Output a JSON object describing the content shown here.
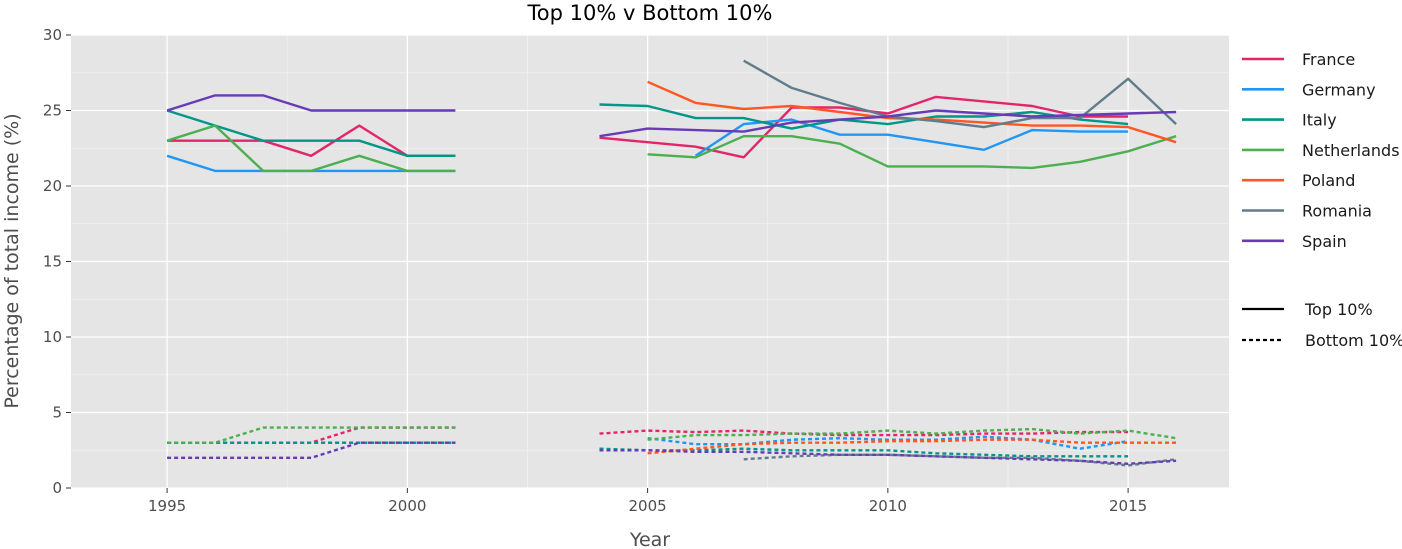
{
  "chart_data": {
    "type": "line",
    "title": "Top 10% v Bottom 10%",
    "xlabel": "Year",
    "ylabel": "Percentage of total income (%)",
    "xlim": [
      1993,
      2017.1
    ],
    "ylim": [
      0,
      30
    ],
    "x_ticks": [
      1995,
      2000,
      2005,
      2010,
      2015
    ],
    "y_ticks": [
      0,
      5,
      10,
      15,
      20,
      25,
      30
    ],
    "grid": true,
    "legend_position": "right",
    "line_style_legend": [
      {
        "label": "Top 10%",
        "dash": "solid"
      },
      {
        "label": "Bottom 10%",
        "dash": "dashed"
      }
    ],
    "series": [
      {
        "name": "France",
        "color": "#E3256B",
        "top10": [
          [
            1995,
            23
          ],
          [
            1996,
            23
          ],
          [
            1997,
            23
          ],
          [
            1998,
            22
          ],
          [
            1999,
            24
          ],
          [
            2000,
            22
          ],
          [
            2001,
            22
          ],
          [
            null,
            null
          ],
          [
            2004,
            23.2
          ],
          [
            2005,
            22.9
          ],
          [
            2006,
            22.6
          ],
          [
            2007,
            21.9
          ],
          [
            2008,
            25.2
          ],
          [
            2009,
            25.2
          ],
          [
            2010,
            24.8
          ],
          [
            2011,
            25.9
          ],
          [
            2012,
            25.6
          ],
          [
            2013,
            25.3
          ],
          [
            2014,
            24.6
          ],
          [
            2015,
            24.6
          ]
        ],
        "bottom10": [
          [
            1995,
            3
          ],
          [
            1996,
            3
          ],
          [
            1997,
            3
          ],
          [
            1998,
            3
          ],
          [
            1999,
            4
          ],
          [
            2000,
            4
          ],
          [
            2001,
            4
          ],
          [
            null,
            null
          ],
          [
            2004,
            3.6
          ],
          [
            2005,
            3.8
          ],
          [
            2006,
            3.7
          ],
          [
            2007,
            3.8
          ],
          [
            2008,
            3.6
          ],
          [
            2009,
            3.5
          ],
          [
            2010,
            3.5
          ],
          [
            2011,
            3.5
          ],
          [
            2012,
            3.6
          ],
          [
            2013,
            3.6
          ],
          [
            2014,
            3.7
          ],
          [
            2015,
            3.7
          ]
        ]
      },
      {
        "name": "Germany",
        "color": "#2196F3",
        "top10": [
          [
            1995,
            22
          ],
          [
            1996,
            21
          ],
          [
            1997,
            21
          ],
          [
            1998,
            21
          ],
          [
            1999,
            21
          ],
          [
            2000,
            21
          ],
          [
            2001,
            21
          ],
          [
            null,
            null
          ],
          [
            2006,
            22
          ],
          [
            2007,
            24.1
          ],
          [
            2008,
            24.4
          ],
          [
            2009,
            23.4
          ],
          [
            2010,
            23.4
          ],
          [
            2011,
            22.9
          ],
          [
            2012,
            22.4
          ],
          [
            2013,
            23.7
          ],
          [
            2014,
            23.6
          ],
          [
            2015,
            23.6
          ]
        ],
        "bottom10": [
          [
            1995,
            3
          ],
          [
            1996,
            3
          ],
          [
            1997,
            3
          ],
          [
            1998,
            3
          ],
          [
            1999,
            3
          ],
          [
            2000,
            3
          ],
          [
            2001,
            3
          ],
          [
            null,
            null
          ],
          [
            2005,
            3.3
          ],
          [
            2006,
            2.9
          ],
          [
            2007,
            2.9
          ],
          [
            2008,
            3.2
          ],
          [
            2009,
            3.3
          ],
          [
            2010,
            3.2
          ],
          [
            2011,
            3.2
          ],
          [
            2012,
            3.4
          ],
          [
            2013,
            3.2
          ],
          [
            2014,
            2.6
          ],
          [
            2015,
            3.1
          ]
        ]
      },
      {
        "name": "Italy",
        "color": "#009688",
        "top10": [
          [
            1995,
            25
          ],
          [
            1996,
            24
          ],
          [
            1997,
            23
          ],
          [
            1998,
            23
          ],
          [
            1999,
            23
          ],
          [
            2000,
            22
          ],
          [
            2001,
            22
          ],
          [
            null,
            null
          ],
          [
            2004,
            25.4
          ],
          [
            2005,
            25.3
          ],
          [
            2006,
            24.5
          ],
          [
            2007,
            24.5
          ],
          [
            2008,
            23.8
          ],
          [
            2009,
            24.4
          ],
          [
            2010,
            24.1
          ],
          [
            2011,
            24.6
          ],
          [
            2012,
            24.6
          ],
          [
            2013,
            24.9
          ],
          [
            2014,
            24.4
          ],
          [
            2015,
            24.1
          ]
        ],
        "bottom10": [
          [
            1995,
            3
          ],
          [
            1996,
            3
          ],
          [
            1997,
            3
          ],
          [
            1998,
            3
          ],
          [
            1999,
            3
          ],
          [
            2000,
            3
          ],
          [
            2001,
            3
          ],
          [
            null,
            null
          ],
          [
            2004,
            2.6
          ],
          [
            2005,
            2.5
          ],
          [
            2006,
            2.5
          ],
          [
            2007,
            2.6
          ],
          [
            2008,
            2.5
          ],
          [
            2009,
            2.5
          ],
          [
            2010,
            2.5
          ],
          [
            2011,
            2.3
          ],
          [
            2012,
            2.2
          ],
          [
            2013,
            2.1
          ],
          [
            2014,
            2.1
          ],
          [
            2015,
            2.1
          ]
        ]
      },
      {
        "name": "Netherlands",
        "color": "#4CAF50",
        "top10": [
          [
            1995,
            23
          ],
          [
            1996,
            24
          ],
          [
            1997,
            21
          ],
          [
            1998,
            21
          ],
          [
            1999,
            22
          ],
          [
            2000,
            21
          ],
          [
            2001,
            21
          ],
          [
            null,
            null
          ],
          [
            2005,
            22.1
          ],
          [
            2006,
            21.9
          ],
          [
            2007,
            23.3
          ],
          [
            2008,
            23.3
          ],
          [
            2009,
            22.8
          ],
          [
            2010,
            21.3
          ],
          [
            2011,
            21.3
          ],
          [
            2012,
            21.3
          ],
          [
            2013,
            21.2
          ],
          [
            2014,
            21.6
          ],
          [
            2015,
            22.3
          ],
          [
            2016,
            23.3
          ]
        ],
        "bottom10": [
          [
            1995,
            3
          ],
          [
            1996,
            3
          ],
          [
            1997,
            4
          ],
          [
            1998,
            4
          ],
          [
            1999,
            4
          ],
          [
            2000,
            4
          ],
          [
            2001,
            4
          ],
          [
            null,
            null
          ],
          [
            2005,
            3.2
          ],
          [
            2006,
            3.5
          ],
          [
            2007,
            3.5
          ],
          [
            2008,
            3.6
          ],
          [
            2009,
            3.6
          ],
          [
            2010,
            3.8
          ],
          [
            2011,
            3.6
          ],
          [
            2012,
            3.8
          ],
          [
            2013,
            3.9
          ],
          [
            2014,
            3.6
          ],
          [
            2015,
            3.8
          ],
          [
            2016,
            3.3
          ]
        ]
      },
      {
        "name": "Poland",
        "color": "#FF5722",
        "top10": [
          [
            2005,
            26.9
          ],
          [
            2006,
            25.5
          ],
          [
            2007,
            25.1
          ],
          [
            2008,
            25.3
          ],
          [
            2009,
            24.9
          ],
          [
            2010,
            24.5
          ],
          [
            2011,
            24.4
          ],
          [
            2012,
            24.2
          ],
          [
            2013,
            24.0
          ],
          [
            2014,
            24.0
          ],
          [
            2015,
            23.9
          ],
          [
            2016,
            22.9
          ]
        ],
        "bottom10": [
          [
            2005,
            2.3
          ],
          [
            2006,
            2.6
          ],
          [
            2007,
            2.9
          ],
          [
            2008,
            3.0
          ],
          [
            2009,
            3.0
          ],
          [
            2010,
            3.1
          ],
          [
            2011,
            3.1
          ],
          [
            2012,
            3.2
          ],
          [
            2013,
            3.2
          ],
          [
            2014,
            3.0
          ],
          [
            2015,
            3.0
          ],
          [
            2016,
            3.0
          ]
        ]
      },
      {
        "name": "Romania",
        "color": "#607D8B",
        "top10": [
          [
            2007,
            28.3
          ],
          [
            2008,
            26.5
          ],
          [
            2009,
            25.5
          ],
          [
            2010,
            24.6
          ],
          [
            2011,
            24.3
          ],
          [
            2012,
            23.9
          ],
          [
            2013,
            24.5
          ],
          [
            2014,
            24.5
          ],
          [
            2015,
            27.1
          ],
          [
            2016,
            24.1
          ]
        ],
        "bottom10": [
          [
            2007,
            1.9
          ],
          [
            2008,
            2.1
          ],
          [
            2009,
            2.2
          ],
          [
            2010,
            2.2
          ],
          [
            2011,
            2.1
          ],
          [
            2012,
            2.0
          ],
          [
            2013,
            2.0
          ],
          [
            2014,
            1.8
          ],
          [
            2015,
            1.5
          ],
          [
            2016,
            1.9
          ]
        ]
      },
      {
        "name": "Spain",
        "color": "#673AB7",
        "top10": [
          [
            1995,
            25
          ],
          [
            1996,
            26
          ],
          [
            1997,
            26
          ],
          [
            1998,
            25
          ],
          [
            1999,
            25
          ],
          [
            2000,
            25
          ],
          [
            2001,
            25
          ],
          [
            null,
            null
          ],
          [
            2004,
            23.3
          ],
          [
            2005,
            23.8
          ],
          [
            2006,
            23.7
          ],
          [
            2007,
            23.6
          ],
          [
            2008,
            24.2
          ],
          [
            2009,
            24.4
          ],
          [
            2010,
            24.6
          ],
          [
            2011,
            25.0
          ],
          [
            2012,
            24.8
          ],
          [
            2013,
            24.6
          ],
          [
            2014,
            24.7
          ],
          [
            2015,
            24.8
          ],
          [
            2016,
            24.9
          ]
        ],
        "bottom10": [
          [
            1995,
            2
          ],
          [
            1996,
            2
          ],
          [
            1997,
            2
          ],
          [
            1998,
            2
          ],
          [
            1999,
            3
          ],
          [
            2000,
            3
          ],
          [
            2001,
            3
          ],
          [
            null,
            null
          ],
          [
            2004,
            2.5
          ],
          [
            2005,
            2.5
          ],
          [
            2006,
            2.4
          ],
          [
            2007,
            2.4
          ],
          [
            2008,
            2.3
          ],
          [
            2009,
            2.2
          ],
          [
            2010,
            2.2
          ],
          [
            2011,
            2.1
          ],
          [
            2012,
            2.0
          ],
          [
            2013,
            1.9
          ],
          [
            2014,
            1.8
          ],
          [
            2015,
            1.6
          ],
          [
            2016,
            1.8
          ]
        ]
      }
    ]
  }
}
